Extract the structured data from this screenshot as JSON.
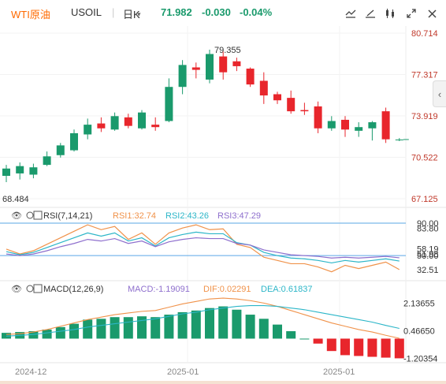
{
  "header": {
    "instrument": "WTI原油",
    "symbol": "USOIL",
    "period": "日K",
    "price": "71.982",
    "change": "-0.030",
    "change_pct": "-0.04%",
    "colors": {
      "instrument": "#ff6a00",
      "down": "#1a9a6c",
      "up": "#e8262c"
    },
    "icons": [
      "indicator-icon",
      "draw-icon",
      "compare-icon",
      "fullscreen-icon",
      "close-icon"
    ]
  },
  "chart_data": [
    {
      "type": "candlestick",
      "name": "main",
      "x_labels": [
        "2024-12",
        "2025-01",
        "2025-01"
      ],
      "ylim": [
        67.125,
        80.714
      ],
      "yticks": [
        "80.714",
        "77.317",
        "73.919",
        "70.522",
        "67.125"
      ],
      "annotations": {
        "high_label": "79.355",
        "low_label": "68.484"
      },
      "candles": [
        {
          "o": 69.0,
          "h": 69.9,
          "l": 68.484,
          "c": 69.6
        },
        {
          "o": 69.2,
          "h": 70.1,
          "l": 68.7,
          "c": 69.8
        },
        {
          "o": 69.1,
          "h": 70.0,
          "l": 68.8,
          "c": 69.7
        },
        {
          "o": 69.9,
          "h": 71.0,
          "l": 69.8,
          "c": 70.6
        },
        {
          "o": 70.7,
          "h": 71.7,
          "l": 70.5,
          "c": 71.5
        },
        {
          "o": 71.1,
          "h": 72.8,
          "l": 71.0,
          "c": 72.5
        },
        {
          "o": 72.4,
          "h": 73.7,
          "l": 72.0,
          "c": 73.2
        },
        {
          "o": 73.3,
          "h": 73.8,
          "l": 72.6,
          "c": 72.9
        },
        {
          "o": 72.8,
          "h": 74.2,
          "l": 72.7,
          "c": 73.9
        },
        {
          "o": 73.8,
          "h": 74.1,
          "l": 72.9,
          "c": 73.1
        },
        {
          "o": 72.9,
          "h": 74.4,
          "l": 72.8,
          "c": 74.2
        },
        {
          "o": 73.2,
          "h": 73.8,
          "l": 72.7,
          "c": 73.0
        },
        {
          "o": 73.5,
          "h": 77.0,
          "l": 73.4,
          "c": 76.3
        },
        {
          "o": 76.3,
          "h": 78.5,
          "l": 75.7,
          "c": 78.1
        },
        {
          "o": 77.9,
          "h": 78.3,
          "l": 77.0,
          "c": 77.7
        },
        {
          "o": 76.9,
          "h": 79.355,
          "l": 76.6,
          "c": 79.0
        },
        {
          "o": 78.8,
          "h": 79.2,
          "l": 76.9,
          "c": 77.5
        },
        {
          "o": 78.4,
          "h": 78.7,
          "l": 77.6,
          "c": 78.0
        },
        {
          "o": 77.8,
          "h": 77.9,
          "l": 76.3,
          "c": 76.5
        },
        {
          "o": 76.8,
          "h": 77.5,
          "l": 74.9,
          "c": 75.6
        },
        {
          "o": 75.7,
          "h": 75.9,
          "l": 74.9,
          "c": 75.2
        },
        {
          "o": 75.4,
          "h": 76.0,
          "l": 74.1,
          "c": 74.3
        },
        {
          "o": 74.4,
          "h": 75.0,
          "l": 74.0,
          "c": 74.3
        },
        {
          "o": 74.7,
          "h": 75.1,
          "l": 72.5,
          "c": 72.9
        },
        {
          "o": 72.9,
          "h": 73.9,
          "l": 72.7,
          "c": 73.5
        },
        {
          "o": 73.6,
          "h": 73.9,
          "l": 72.2,
          "c": 72.8
        },
        {
          "o": 72.7,
          "h": 73.4,
          "l": 72.2,
          "c": 73.0
        },
        {
          "o": 72.9,
          "h": 73.5,
          "l": 71.9,
          "c": 73.4
        },
        {
          "o": 74.3,
          "h": 74.6,
          "l": 71.7,
          "c": 72.0
        },
        {
          "o": 71.95,
          "h": 72.1,
          "l": 71.85,
          "c": 71.982
        }
      ]
    },
    {
      "type": "line",
      "name": "RSI",
      "label": "RSI(7,14,21)",
      "values_text": [
        "RSI1:32.74",
        "RSI2:43.26",
        "RSI3:47.29"
      ],
      "ylim": [
        20,
        92
      ],
      "yticks": [
        "90.00",
        "83.80",
        "58.19",
        "51.98",
        "50.00",
        "32.51"
      ],
      "reference_lines": [
        90,
        50
      ],
      "series": [
        {
          "name": "RSI1",
          "color": "#f0924a",
          "values": [
            58,
            52,
            56,
            64,
            72,
            80,
            88,
            82,
            86,
            70,
            78,
            64,
            78,
            84,
            88,
            82,
            83,
            64,
            60,
            48,
            44,
            40,
            40,
            36,
            30,
            38,
            34,
            38,
            42,
            32.74
          ]
        },
        {
          "name": "RSI2",
          "color": "#2cb6c8",
          "values": [
            55,
            51,
            54,
            60,
            66,
            72,
            78,
            74,
            78,
            68,
            72,
            62,
            72,
            76,
            79,
            77,
            77,
            66,
            63,
            54,
            50,
            47,
            46,
            44,
            41,
            44,
            42,
            44,
            46,
            43.26
          ]
        },
        {
          "name": "RSI3",
          "color": "#8e6fcd",
          "values": [
            52,
            50,
            52,
            56,
            61,
            65,
            70,
            68,
            71,
            65,
            68,
            61,
            67,
            70,
            72,
            71,
            71,
            65,
            63,
            57,
            54,
            51,
            50,
            49,
            47,
            48,
            47,
            48,
            49,
            47.29
          ]
        }
      ]
    },
    {
      "type": "bar+line",
      "name": "MACD",
      "label": "MACD(12,26,9)",
      "values_text": [
        "MACD:-1.19091",
        "DIF:0.02291",
        "DEA:0.61837"
      ],
      "ylim": [
        -1.6,
        2.55
      ],
      "yticks": [
        "2.13655",
        "0.46650",
        "-1.20354"
      ],
      "bars": [
        0.35,
        0.4,
        0.45,
        0.55,
        0.7,
        0.9,
        1.15,
        1.2,
        1.3,
        1.3,
        1.35,
        1.3,
        1.45,
        1.6,
        1.7,
        1.85,
        1.95,
        1.75,
        1.45,
        1.2,
        0.85,
        0.45,
        0.0,
        -0.3,
        -0.75,
        -1.0,
        -1.05,
        -1.1,
        -1.15,
        -1.19091
      ],
      "series": [
        {
          "name": "DIF",
          "color": "#f0924a",
          "values": [
            0.25,
            0.3,
            0.4,
            0.55,
            0.75,
            0.95,
            1.15,
            1.3,
            1.45,
            1.55,
            1.65,
            1.7,
            1.9,
            2.1,
            2.25,
            2.4,
            2.45,
            2.4,
            2.3,
            2.15,
            1.95,
            1.7,
            1.45,
            1.2,
            0.95,
            0.75,
            0.55,
            0.4,
            0.2,
            0.02291
          ]
        },
        {
          "name": "DEA",
          "color": "#2cb6c8",
          "values": [
            0.15,
            0.2,
            0.25,
            0.35,
            0.45,
            0.55,
            0.7,
            0.8,
            0.9,
            1.0,
            1.1,
            1.2,
            1.35,
            1.5,
            1.6,
            1.75,
            1.85,
            1.95,
            2.0,
            2.0,
            1.95,
            1.85,
            1.75,
            1.6,
            1.45,
            1.3,
            1.15,
            1.0,
            0.8,
            0.61837
          ]
        }
      ]
    }
  ]
}
